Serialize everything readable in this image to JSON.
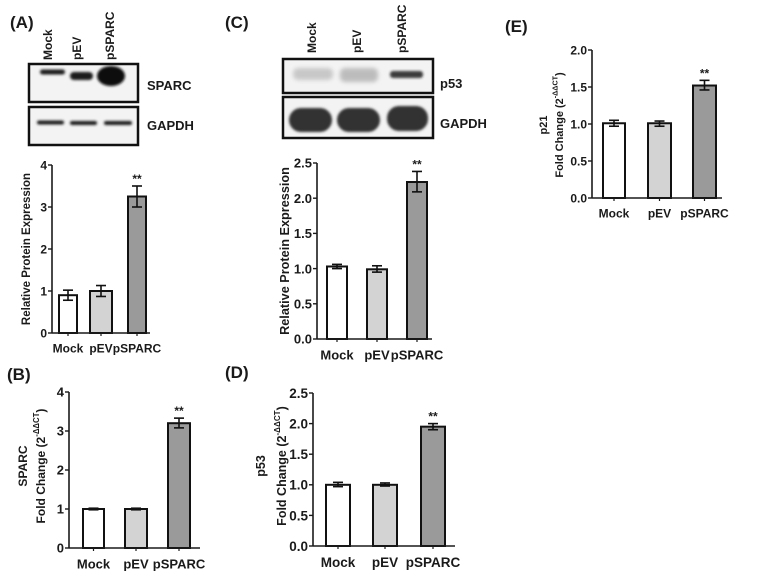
{
  "figure": {
    "panel_labels": {
      "A": "(A)",
      "B": "(B)",
      "C": "(C)",
      "D": "(D)",
      "E": "(E)"
    },
    "blots": [
      {
        "panel": "A",
        "lanes": [
          "Mock",
          "pEV",
          "pSPARC"
        ],
        "rows": [
          "SPARC",
          "GAPDH"
        ]
      },
      {
        "panel": "C",
        "lanes": [
          "Mock",
          "pEV",
          "pSPARC"
        ],
        "rows": [
          "p53",
          "GAPDH"
        ]
      }
    ],
    "colors": {
      "axis": "#1a1a1a",
      "bar_outline": "#111111",
      "blot_background": "#f3f3f3",
      "band": "#1c1c1c"
    }
  },
  "chart_data": [
    {
      "panel": "A",
      "type": "bar",
      "title": "",
      "xlabel": "",
      "ylabel": "Relative Protein Expression",
      "ylabel_lines": [
        {
          "text": "Relative Protein Expression"
        }
      ],
      "categories": [
        "Mock",
        "pEV",
        "pSPARC"
      ],
      "values": [
        0.9,
        1.0,
        3.25
      ],
      "error_low": [
        0.78,
        0.87,
        3.0
      ],
      "error_high": [
        1.02,
        1.13,
        3.5
      ],
      "significance": [
        "",
        "",
        "**"
      ],
      "ylim": [
        0,
        4
      ],
      "yticks": [
        0,
        1,
        2,
        3,
        4
      ],
      "ytick_labels": [
        "0",
        "1",
        "2",
        "3",
        "4"
      ],
      "bar_colors": [
        "#ffffff",
        "#d3d3d3",
        "#9a9a9a"
      ],
      "grid": false,
      "legend": null
    },
    {
      "panel": "B",
      "type": "bar",
      "title": "",
      "xlabel": "",
      "ylabel": "SPARC Fold Change (2^-ΔΔCT)",
      "ylabel_lines": [
        {
          "text": "SPARC"
        },
        {
          "text": "Fold Change (2",
          "sup": "-ΔΔCT",
          "tail": ")"
        }
      ],
      "categories": [
        "Mock",
        "pEV",
        "pSPARC"
      ],
      "values": [
        1.0,
        1.0,
        3.2
      ],
      "error_low": [
        0.98,
        0.98,
        3.08
      ],
      "error_high": [
        1.02,
        1.02,
        3.33
      ],
      "significance": [
        "",
        "",
        "**"
      ],
      "ylim": [
        0,
        4
      ],
      "yticks": [
        0,
        1,
        2,
        3,
        4
      ],
      "ytick_labels": [
        "0",
        "1",
        "2",
        "3",
        "4"
      ],
      "bar_colors": [
        "#ffffff",
        "#d3d3d3",
        "#9a9a9a"
      ],
      "grid": false,
      "legend": null
    },
    {
      "panel": "C",
      "type": "bar",
      "title": "",
      "xlabel": "",
      "ylabel": "Relative Protein Expression",
      "ylabel_lines": [
        {
          "text": "Relative Protein Expression"
        }
      ],
      "categories": [
        "Mock",
        "pEV",
        "pSPARC"
      ],
      "values": [
        1.03,
        0.99,
        2.23
      ],
      "error_low": [
        1.0,
        0.95,
        2.09
      ],
      "error_high": [
        1.06,
        1.04,
        2.38
      ],
      "significance": [
        "",
        "",
        "**"
      ],
      "ylim": [
        0,
        2.5
      ],
      "yticks": [
        0,
        0.5,
        1.0,
        1.5,
        2.0,
        2.5
      ],
      "ytick_labels": [
        "0.0",
        "0.5",
        "1.0",
        "1.5",
        "2.0",
        "2.5"
      ],
      "bar_colors": [
        "#ffffff",
        "#d3d3d3",
        "#9a9a9a"
      ],
      "grid": false,
      "legend": null
    },
    {
      "panel": "D",
      "type": "bar",
      "title": "",
      "xlabel": "",
      "ylabel": "p53 Fold Change (2^-ΔΔCT)",
      "ylabel_lines": [
        {
          "text": "p53"
        },
        {
          "text": "Fold Change (2",
          "sup": "-ΔΔCT",
          "tail": ")"
        }
      ],
      "categories": [
        "Mock",
        "pEV",
        "pSPARC"
      ],
      "values": [
        1.0,
        1.0,
        1.95
      ],
      "error_low": [
        0.97,
        0.98,
        1.9
      ],
      "error_high": [
        1.04,
        1.03,
        2.0
      ],
      "significance": [
        "",
        "",
        "**"
      ],
      "ylim": [
        0,
        2.5
      ],
      "yticks": [
        0,
        0.5,
        1.0,
        1.5,
        2.0,
        2.5
      ],
      "ytick_labels": [
        "0.0",
        "0.5",
        "1.0",
        "1.5",
        "2.0",
        "2.5"
      ],
      "bar_colors": [
        "#ffffff",
        "#d3d3d3",
        "#9a9a9a"
      ],
      "grid": false,
      "legend": null
    },
    {
      "panel": "E",
      "type": "bar",
      "title": "",
      "xlabel": "",
      "ylabel": "p21 Fold Change (2^-ΔΔCT)",
      "ylabel_lines": [
        {
          "text": "p21"
        },
        {
          "text": "Fold Change (2",
          "sup": "-ΔΔCT",
          "tail": ")"
        }
      ],
      "categories": [
        "Mock",
        "pEV",
        "pSPARC"
      ],
      "values": [
        1.01,
        1.01,
        1.52
      ],
      "error_low": [
        0.97,
        0.97,
        1.46
      ],
      "error_high": [
        1.05,
        1.04,
        1.59
      ],
      "significance": [
        "",
        "",
        "**"
      ],
      "ylim": [
        0,
        2.0
      ],
      "yticks": [
        0,
        0.5,
        1.0,
        1.5,
        2.0
      ],
      "ytick_labels": [
        "0.0",
        "0.5",
        "1.0",
        "1.5",
        "2.0"
      ],
      "bar_colors": [
        "#ffffff",
        "#d3d3d3",
        "#9a9a9a"
      ],
      "grid": false,
      "legend": null
    }
  ]
}
